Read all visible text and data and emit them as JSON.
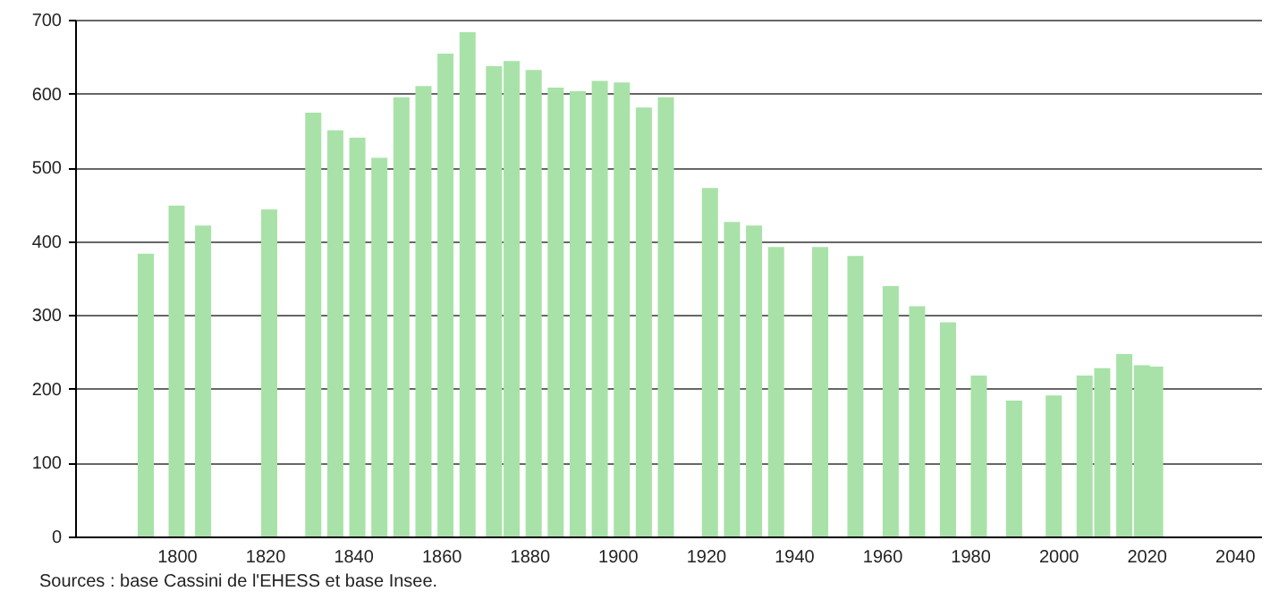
{
  "chart_data": {
    "type": "bar",
    "color": "#a8e2a8",
    "x": [
      1793,
      1800,
      1806,
      1821,
      1831,
      1836,
      1841,
      1846,
      1851,
      1856,
      1861,
      1866,
      1872,
      1876,
      1881,
      1886,
      1891,
      1896,
      1901,
      1906,
      1911,
      1921,
      1926,
      1931,
      1936,
      1946,
      1954,
      1962,
      1968,
      1975,
      1982,
      1990,
      1999,
      2006,
      2010,
      2015,
      2019,
      2022
    ],
    "values": [
      383,
      448,
      421,
      443,
      574,
      550,
      540,
      513,
      595,
      610,
      654,
      683,
      637,
      644,
      632,
      608,
      603,
      617,
      615,
      581,
      595,
      472,
      426,
      421,
      392,
      392,
      380,
      339,
      312,
      290,
      218,
      184,
      191,
      218,
      228,
      247,
      232,
      230
    ],
    "xlim": [
      1779,
      2044
    ],
    "xticks": [
      1800,
      1820,
      1840,
      1860,
      1880,
      1900,
      1920,
      1940,
      1960,
      1980,
      2000,
      2020,
      2040
    ],
    "ylim": [
      0,
      700
    ],
    "yticks": [
      0,
      100,
      200,
      300,
      400,
      500,
      600,
      700
    ],
    "grid": "y",
    "annotations": [
      "Sources : base Cassini de l'EHESS et base Insee."
    ]
  }
}
